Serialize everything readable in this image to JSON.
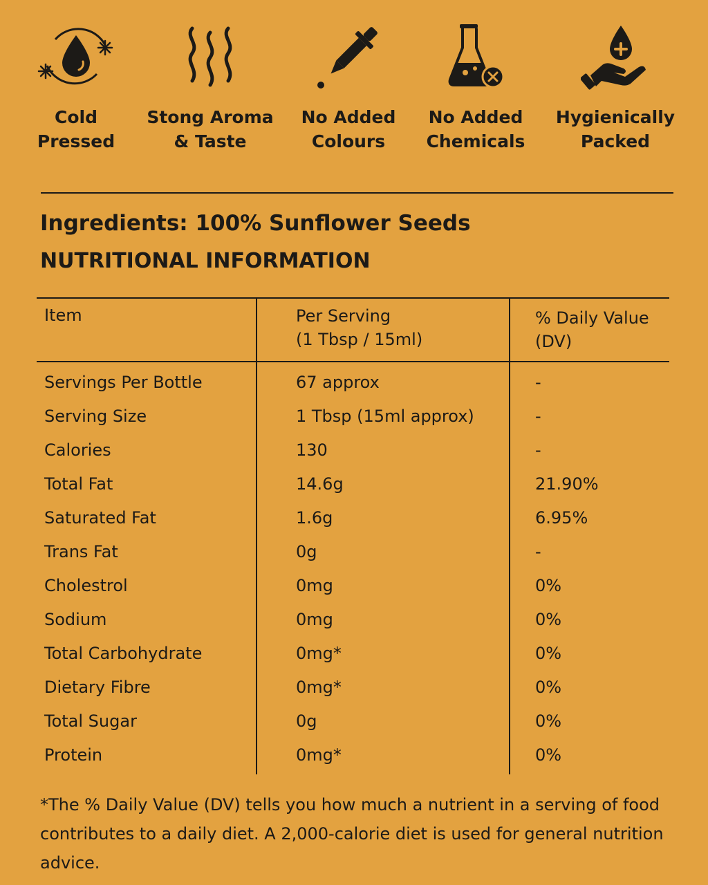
{
  "features": [
    {
      "icon": "cold-pressed-drop-icon",
      "line1": "Cold",
      "line2": "Pressed"
    },
    {
      "icon": "aroma-waves-icon",
      "line1": "Stong Aroma",
      "line2": "& Taste"
    },
    {
      "icon": "dropper-icon",
      "line1": "No Added",
      "line2": "Colours"
    },
    {
      "icon": "flask-no-chemicals-icon",
      "line1": "No Added",
      "line2": "Chemicals"
    },
    {
      "icon": "hand-drop-icon",
      "line1": "Hygienically",
      "line2": "Packed"
    }
  ],
  "ingredients": "Ingredients: 100% Sunflower Seeds",
  "heading": "NUTRITIONAL INFORMATION",
  "table": {
    "headers": {
      "item": "Item",
      "per_serving_1": "Per Serving",
      "per_serving_2": "(1 Tbsp / 15ml)",
      "dv_1": "% Daily Value",
      "dv_2": "(DV)"
    },
    "rows": [
      {
        "item": "Servings Per Bottle",
        "per_serving": "67 approx",
        "dv": "-"
      },
      {
        "item": "Serving Size",
        "per_serving": "1 Tbsp (15ml approx)",
        "dv": "-"
      },
      {
        "item": "Calories",
        "per_serving": "130",
        "dv": "-"
      },
      {
        "item": "Total Fat",
        "per_serving": "14.6g",
        "dv": "21.90%"
      },
      {
        "item": "Saturated Fat",
        "per_serving": "1.6g",
        "dv": "6.95%"
      },
      {
        "item": "Trans Fat",
        "per_serving": "0g",
        "dv": "-"
      },
      {
        "item": "Cholestrol",
        "per_serving": "0mg",
        "dv": "0%"
      },
      {
        "item": "Sodium",
        "per_serving": "0mg",
        "dv": "0%"
      },
      {
        "item": "Total Carbohydrate",
        "per_serving": "0mg*",
        "dv": "0%"
      },
      {
        "item": "Dietary Fibre",
        "per_serving": "0mg*",
        "dv": "0%"
      },
      {
        "item": "Total Sugar",
        "per_serving": "0g",
        "dv": "0%"
      },
      {
        "item": "Protein",
        "per_serving": "0mg*",
        "dv": "0%"
      }
    ]
  },
  "footnote": "*The % Daily Value (DV) tells you how much a nutrient in a serving of food contributes to a daily diet. A 2,000-calorie diet is used for general nutrition advice.",
  "colors": {
    "background": "#E3A240",
    "ink": "#1c1a17"
  }
}
